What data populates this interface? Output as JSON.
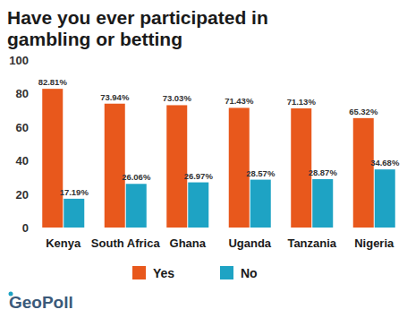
{
  "chart_data": {
    "type": "bar",
    "title": "Have you ever participated in gambling or betting",
    "categories": [
      "Kenya",
      "South Africa",
      "Ghana",
      "Uganda",
      "Tanzania",
      "Nigeria"
    ],
    "series": [
      {
        "name": "Yes",
        "color": "#e8581c",
        "values": [
          82.81,
          73.94,
          73.03,
          71.43,
          71.13,
          65.32
        ],
        "value_labels": [
          "82.81%",
          "73.94%",
          "73.03%",
          "71.43%",
          "71.13%",
          "65.32%"
        ]
      },
      {
        "name": "No",
        "color": "#1ea3c4",
        "values": [
          17.19,
          26.06,
          26.97,
          28.57,
          28.87,
          34.68
        ],
        "value_labels": [
          "17.19%",
          "26.06%",
          "26.97%",
          "28.57%",
          "28.87%",
          "34.68%"
        ]
      }
    ],
    "ylim": [
      0,
      100
    ],
    "yticks": [
      0,
      20,
      40,
      60,
      80,
      100
    ],
    "grid": false,
    "data_labels": true,
    "legend": "bottom",
    "annotations": [
      "GeoPoll"
    ]
  }
}
